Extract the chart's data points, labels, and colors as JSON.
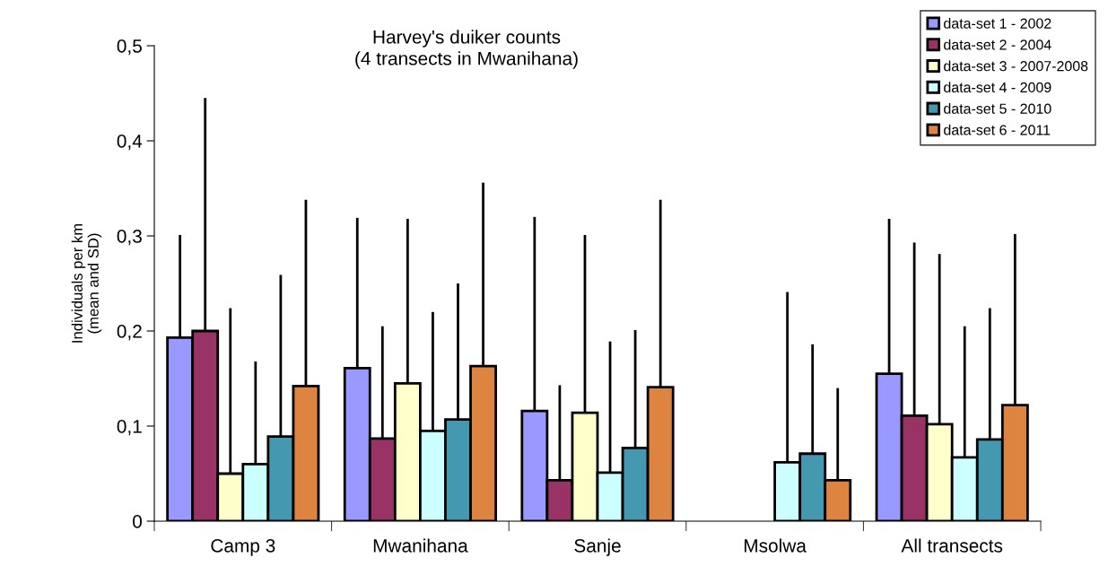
{
  "chart_data": {
    "type": "bar",
    "title": "Harvey's duiker counts\n(4 transects in Mwanihana)",
    "ylabel": "Individuals per km\n(mean and SD)",
    "categories": [
      "Camp 3",
      "Mwanihana",
      "Sanje",
      "Msolwa",
      "All transects"
    ],
    "series": [
      {
        "name": "data-set 1 - 2002",
        "color": "#9999ff",
        "values": [
          0.193,
          0.161,
          0.116,
          null,
          0.155
        ],
        "errors": [
          [
            0.193,
            0.301
          ],
          [
            0.161,
            0.319
          ],
          [
            0.116,
            0.32
          ],
          null,
          [
            0.155,
            0.318
          ]
        ]
      },
      {
        "name": "data-set 2 - 2004",
        "color": "#993366",
        "values": [
          0.2,
          0.087,
          0.043,
          null,
          0.111
        ],
        "errors": [
          [
            0.2,
            0.445
          ],
          [
            0.087,
            0.205
          ],
          [
            0.043,
            0.143
          ],
          null,
          [
            0.111,
            0.293
          ]
        ]
      },
      {
        "name": "data-set 3 - 2007-2008",
        "color": "#ffffcc",
        "values": [
          0.05,
          0.145,
          0.114,
          null,
          0.102
        ],
        "errors": [
          [
            0.05,
            0.224
          ],
          [
            0.145,
            0.318
          ],
          [
            0.114,
            0.301
          ],
          null,
          [
            0.102,
            0.281
          ]
        ]
      },
      {
        "name": "data-set 4 - 2009",
        "color": "#ccffff",
        "values": [
          0.06,
          0.095,
          0.051,
          0.062,
          0.067
        ],
        "errors": [
          [
            0.06,
            0.168
          ],
          [
            0.095,
            0.22
          ],
          [
            0.051,
            0.189
          ],
          [
            0.062,
            0.241
          ],
          [
            0.067,
            0.205
          ]
        ]
      },
      {
        "name": "data-set 5 - 2010",
        "color": "#4499b0",
        "values": [
          0.089,
          0.107,
          0.077,
          0.071,
          0.086
        ],
        "errors": [
          [
            0.089,
            0.259
          ],
          [
            0.107,
            0.25
          ],
          [
            0.077,
            0.201
          ],
          [
            0.071,
            0.186
          ],
          [
            0.086,
            0.224
          ]
        ]
      },
      {
        "name": "data-set 6 - 2011",
        "color": "#dd8440",
        "values": [
          0.142,
          0.163,
          0.141,
          0.043,
          0.122
        ],
        "errors": [
          [
            0.142,
            0.338
          ],
          [
            0.163,
            0.356
          ],
          [
            0.141,
            0.338
          ],
          [
            0.043,
            0.14
          ],
          [
            0.122,
            0.302
          ]
        ]
      }
    ],
    "ylim": [
      0,
      0.5
    ],
    "yticks": [
      0,
      {
        "value": 0.1,
        "label": "0,1"
      },
      {
        "value": 0.2,
        "label": "0,2"
      },
      {
        "value": 0.3,
        "label": "0,3"
      },
      {
        "value": 0.4,
        "label": "0,4"
      },
      {
        "value": 0.5,
        "label": "0,5"
      }
    ],
    "grid": false,
    "legend": "top right"
  }
}
